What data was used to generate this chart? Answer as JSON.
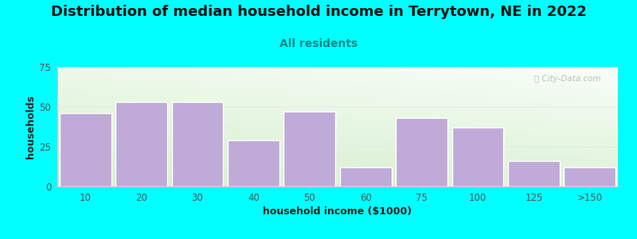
{
  "title": "Distribution of median household income in Terrytown, NE in 2022",
  "subtitle": "All residents",
  "xlabel": "household income ($1000)",
  "ylabel": "households",
  "background_color": "#00FFFF",
  "plot_bg_topleft": "#d4eecb",
  "plot_bg_bottomright": "#f8fef5",
  "bar_color": "#c0aad8",
  "bar_edge_color": "#ffffff",
  "categories": [
    "10",
    "20",
    "30",
    "40",
    "50",
    "60",
    "75",
    "100",
    "125",
    ">150"
  ],
  "values": [
    46,
    53,
    53,
    29,
    47,
    12,
    43,
    37,
    16,
    12
  ],
  "ylim": [
    0,
    75
  ],
  "yticks": [
    0,
    25,
    50,
    75
  ],
  "title_fontsize": 13,
  "subtitle_fontsize": 10,
  "axis_label_fontsize": 9,
  "watermark_text": "City-Data.com",
  "title_color": "#111111",
  "subtitle_color": "#008888",
  "tick_color": "#555555",
  "grid_color": "#e8e8e8",
  "spine_color": "#cccccc"
}
